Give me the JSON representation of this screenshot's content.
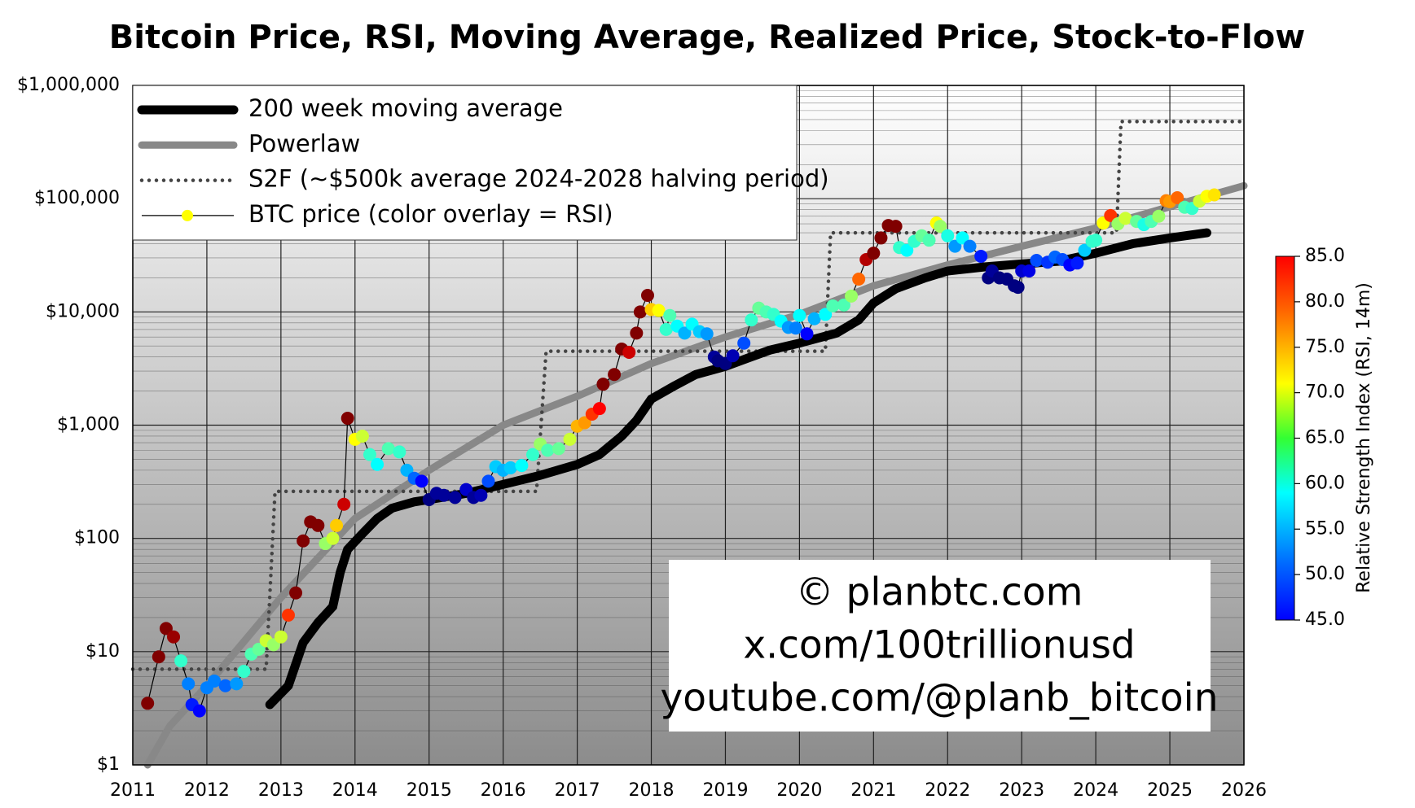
{
  "chart_data": {
    "type": "line",
    "title": "Bitcoin Price, RSI, Moving Average, Realized Price, Stock-to-Flow",
    "log_scale": true,
    "grid": true,
    "legend": "upper left",
    "xlim": [
      2011,
      2026
    ],
    "xticks": [
      2011,
      2012,
      2013,
      2014,
      2015,
      2016,
      2017,
      2018,
      2019,
      2020,
      2021,
      2022,
      2023,
      2024,
      2025,
      2026
    ],
    "ylim": [
      1,
      1000000
    ],
    "yticks": [
      {
        "value": 1,
        "label": "$1"
      },
      {
        "value": 10,
        "label": "$10"
      },
      {
        "value": 100,
        "label": "$100"
      },
      {
        "value": 1000,
        "label": "$1,000"
      },
      {
        "value": 10000,
        "label": "$10,000"
      },
      {
        "value": 100000,
        "label": "$100,000"
      },
      {
        "value": 1000000,
        "label": "$1,000,000"
      }
    ],
    "series": [
      {
        "name": "200 week moving average",
        "color": "#000000",
        "style": "solid",
        "x": [
          2012.85,
          2013.1,
          2013.3,
          2013.5,
          2013.7,
          2013.8,
          2013.9,
          2014.1,
          2014.3,
          2014.5,
          2014.8,
          2015.0,
          2015.5,
          2016.0,
          2016.5,
          2017.0,
          2017.3,
          2017.6,
          2017.8,
          2018.0,
          2018.3,
          2018.6,
          2019.0,
          2019.3,
          2019.6,
          2020.0,
          2020.5,
          2020.8,
          2021.0,
          2021.3,
          2021.7,
          2022.0,
          2022.5,
          2023.0,
          2023.5,
          2024.0,
          2024.5,
          2025.0,
          2025.5
        ],
        "values": [
          3.4,
          5,
          12,
          18,
          25,
          50,
          80,
          110,
          150,
          185,
          210,
          220,
          250,
          300,
          360,
          450,
          550,
          800,
          1100,
          1700,
          2200,
          2800,
          3300,
          3900,
          4600,
          5300,
          6500,
          8500,
          12000,
          16000,
          20000,
          23000,
          25000,
          26500,
          28000,
          33000,
          40000,
          45000,
          50000
        ]
      },
      {
        "name": "Powerlaw",
        "color": "#888888",
        "style": "solid",
        "x": [
          2011.2,
          2011.5,
          2012.0,
          2013.0,
          2014.0,
          2015.0,
          2016.0,
          2017.0,
          2018.0,
          2019.0,
          2020.0,
          2021.0,
          2022.0,
          2023.0,
          2024.0,
          2025.0,
          2026.0
        ],
        "values": [
          1,
          2.2,
          5,
          30,
          150,
          400,
          1000,
          1800,
          3500,
          6000,
          9500,
          17000,
          26000,
          38000,
          55000,
          85000,
          130000
        ]
      },
      {
        "name": "S2F (~$500k average 2024-2028 halving period)",
        "color": "#444444",
        "style": "dotted",
        "x": [
          2011.0,
          2012.8,
          2012.92,
          2016.45,
          2016.58,
          2020.35,
          2020.42,
          2024.28,
          2024.34,
          2026.0
        ],
        "values": [
          7,
          7,
          260,
          260,
          4500,
          4500,
          50000,
          50000,
          480000,
          480000
        ]
      },
      {
        "name": "BTC price (color overlay = RSI)",
        "color": "#ffff00",
        "style": "thin",
        "marker": "circle",
        "x": [
          2011.2,
          2011.35,
          2011.45,
          2011.55,
          2011.65,
          2011.75,
          2011.8,
          2011.9,
          2012.0,
          2012.1,
          2012.25,
          2012.4,
          2012.5,
          2012.6,
          2012.7,
          2012.8,
          2012.9,
          2013.0,
          2013.1,
          2013.2,
          2013.3,
          2013.4,
          2013.5,
          2013.6,
          2013.7,
          2013.75,
          2013.85,
          2013.9,
          2014.0,
          2014.1,
          2014.2,
          2014.3,
          2014.45,
          2014.6,
          2014.7,
          2014.8,
          2014.9,
          2015.0,
          2015.1,
          2015.2,
          2015.35,
          2015.5,
          2015.6,
          2015.7,
          2015.8,
          2015.9,
          2016.0,
          2016.1,
          2016.25,
          2016.4,
          2016.5,
          2016.6,
          2016.75,
          2016.9,
          2017.0,
          2017.1,
          2017.2,
          2017.3,
          2017.35,
          2017.5,
          2017.6,
          2017.7,
          2017.8,
          2017.85,
          2017.95,
          2018.0,
          2018.1,
          2018.2,
          2018.25,
          2018.35,
          2018.45,
          2018.55,
          2018.65,
          2018.75,
          2018.85,
          2018.9,
          2019.0,
          2019.1,
          2019.25,
          2019.35,
          2019.45,
          2019.55,
          2019.65,
          2019.75,
          2019.85,
          2019.95,
          2020.0,
          2020.1,
          2020.2,
          2020.35,
          2020.45,
          2020.6,
          2020.7,
          2020.8,
          2020.9,
          2021.0,
          2021.1,
          2021.2,
          2021.3,
          2021.35,
          2021.45,
          2021.55,
          2021.65,
          2021.75,
          2021.85,
          2021.9,
          2022.0,
          2022.1,
          2022.2,
          2022.3,
          2022.45,
          2022.55,
          2022.6,
          2022.7,
          2022.8,
          2022.9,
          2022.95,
          2023.0,
          2023.1,
          2023.2,
          2023.35,
          2023.45,
          2023.55,
          2023.65,
          2023.75,
          2023.85,
          2023.95,
          2024.0,
          2024.1,
          2024.2,
          2024.3,
          2024.4,
          2024.55,
          2024.65,
          2024.75,
          2024.85,
          2024.95,
          2025.0,
          2025.1,
          2025.2,
          2025.3,
          2025.4,
          2025.5,
          2025.6
        ],
        "values": [
          3.5,
          9,
          16,
          13.5,
          8.3,
          5.2,
          3.4,
          3.0,
          4.8,
          5.5,
          5.0,
          5.2,
          6.7,
          9.5,
          10.5,
          12.5,
          11.5,
          13.5,
          21,
          33,
          95,
          140,
          130,
          90,
          100,
          130,
          200,
          1150,
          750,
          800,
          550,
          450,
          620,
          580,
          400,
          340,
          320,
          220,
          250,
          240,
          230,
          270,
          230,
          240,
          320,
          430,
          400,
          420,
          440,
          550,
          680,
          600,
          620,
          750,
          980,
          1050,
          1250,
          1400,
          2300,
          2800,
          4700,
          4400,
          6500,
          10000,
          14000,
          10500,
          10300,
          7000,
          9300,
          7500,
          6500,
          7800,
          6700,
          6400,
          4000,
          3700,
          3500,
          4100,
          5300,
          8500,
          10800,
          10000,
          9500,
          8300,
          7300,
          7200,
          9300,
          6400,
          8700,
          9500,
          11300,
          11500,
          13800,
          19500,
          29000,
          33000,
          45000,
          58000,
          57000,
          37000,
          35000,
          42000,
          47000,
          43000,
          61000,
          57000,
          47000,
          38000,
          45000,
          38000,
          31000,
          20000,
          23000,
          20000,
          19500,
          17000,
          16500,
          23000,
          23000,
          28500,
          27500,
          30500,
          29000,
          26000,
          27000,
          35000,
          42000,
          43000,
          61000,
          71000,
          60000,
          67000,
          63000,
          59000,
          63000,
          70000,
          96000,
          94000,
          102000,
          84000,
          82000,
          95000,
          105000,
          108000
        ],
        "rsi": [
          85,
          85,
          85,
          84,
          62,
          55,
          51,
          50,
          55,
          55,
          54,
          56,
          62,
          63,
          64,
          68,
          66,
          68,
          78,
          85,
          85,
          85,
          85,
          66,
          68,
          72,
          82,
          85,
          70,
          68,
          62,
          60,
          63,
          62,
          57,
          54,
          50,
          45,
          46,
          46,
          46,
          48,
          46,
          47,
          53,
          58,
          57,
          58,
          60,
          62,
          66,
          63,
          64,
          68,
          73,
          74,
          78,
          80,
          85,
          85,
          85,
          82,
          85,
          85,
          85,
          72,
          70,
          62,
          63,
          60,
          57,
          60,
          58,
          56,
          46,
          45,
          45,
          47,
          53,
          62,
          64,
          63,
          62,
          60,
          56,
          55,
          60,
          50,
          57,
          60,
          63,
          63,
          66,
          76,
          83,
          85,
          85,
          85,
          85,
          62,
          60,
          62,
          64,
          63,
          70,
          66,
          61,
          56,
          60,
          55,
          51,
          45,
          46,
          45,
          45,
          45,
          45,
          48,
          49,
          53,
          52,
          54,
          53,
          50,
          51,
          58,
          62,
          62,
          70,
          78,
          66,
          68,
          64,
          61,
          63,
          66,
          75,
          74,
          76,
          63,
          62,
          68,
          70,
          71
        ]
      }
    ],
    "colorbar": {
      "label": "Relative Strength Index (RSI, 14m)",
      "lim": [
        45,
        85
      ],
      "ticks": [
        {
          "value": 45,
          "label": "45.0"
        },
        {
          "value": 50,
          "label": "50.0"
        },
        {
          "value": 55,
          "label": "55.0"
        },
        {
          "value": 60,
          "label": "60.0"
        },
        {
          "value": 65,
          "label": "65.0"
        },
        {
          "value": 70,
          "label": "70.0"
        },
        {
          "value": 75,
          "label": "75.0"
        },
        {
          "value": 80,
          "label": "80.0"
        },
        {
          "value": 85,
          "label": "85.0"
        }
      ]
    },
    "annotation": [
      "© planbtc.com",
      "x.com/100trillionusd",
      "youtube.com/@planb_bitcoin"
    ]
  }
}
